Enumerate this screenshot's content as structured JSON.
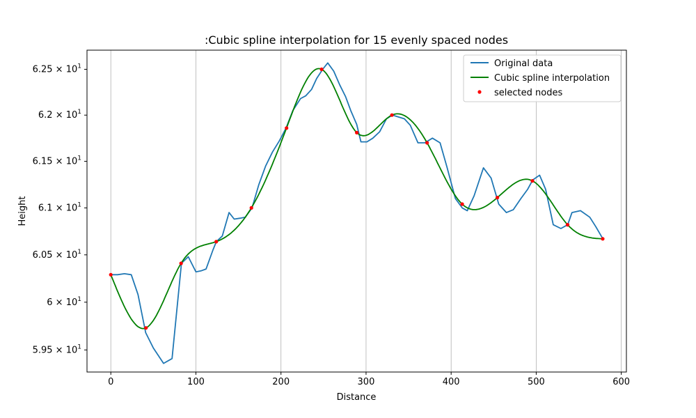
{
  "chart_data": {
    "type": "line",
    "title": ":Cubic spline interpolation for 15 evenly spaced nodes",
    "xlabel": "Distance",
    "ylabel": "Height",
    "xlim": [
      -28,
      606
    ],
    "ylim": [
      59.27,
      62.71
    ],
    "xticks": [
      0,
      100,
      200,
      300,
      400,
      500,
      600
    ],
    "xtick_labels": [
      "0",
      "100",
      "200",
      "300",
      "400",
      "500",
      "600"
    ],
    "yticks": [
      59.5,
      60.0,
      60.5,
      61.0,
      61.5,
      62.0,
      62.5
    ],
    "ytick_labels": [
      {
        "base": "5.95 × 10",
        "exp": "1"
      },
      {
        "base": "6 × 10",
        "exp": "1"
      },
      {
        "base": "6.05 × 10",
        "exp": "1"
      },
      {
        "base": "6.1 × 10",
        "exp": "1"
      },
      {
        "base": "6.15 × 10",
        "exp": "1"
      },
      {
        "base": "6.2 × 10",
        "exp": "1"
      },
      {
        "base": "6.25 × 10",
        "exp": "1"
      }
    ],
    "yscale": "log",
    "grid": "x-vertical",
    "legend_position": "top-right",
    "series": [
      {
        "name": "Original data",
        "kind": "line",
        "color": "#1f77b4",
        "x": [
          0,
          8,
          16,
          24,
          32,
          41,
          50,
          62,
          72,
          83,
          91,
          100,
          106,
          112,
          120,
          124,
          131,
          139,
          145,
          152,
          158,
          166,
          174,
          182,
          190,
          198,
          206,
          214,
          223,
          229,
          236,
          242,
          249,
          255,
          262,
          269,
          276,
          282,
          289,
          294,
          301,
          308,
          316,
          324,
          331,
          338,
          345,
          352,
          361,
          369,
          378,
          387,
          395,
          405,
          413,
          419,
          427,
          438,
          447,
          456,
          465,
          473,
          482,
          490,
          496,
          504,
          511,
          520,
          529,
          537,
          542,
          552,
          563,
          570,
          579
        ],
        "y": [
          60.29,
          60.29,
          60.3,
          60.29,
          60.08,
          59.68,
          59.52,
          59.36,
          59.41,
          60.41,
          60.48,
          60.32,
          60.33,
          60.35,
          60.55,
          60.64,
          60.7,
          60.95,
          60.88,
          60.89,
          60.9,
          61.0,
          61.25,
          61.45,
          61.6,
          61.72,
          61.86,
          62.05,
          62.18,
          62.21,
          62.28,
          62.4,
          62.5,
          62.57,
          62.48,
          62.33,
          62.2,
          62.05,
          61.9,
          61.71,
          61.71,
          61.75,
          61.82,
          61.96,
          62.0,
          61.98,
          61.96,
          61.89,
          61.7,
          61.7,
          61.75,
          61.7,
          61.44,
          61.1,
          61.0,
          60.97,
          61.13,
          61.43,
          61.32,
          61.04,
          60.95,
          60.98,
          61.1,
          61.2,
          61.3,
          61.35,
          61.2,
          60.82,
          60.78,
          60.82,
          60.95,
          60.97,
          60.9,
          60.8,
          60.66
        ]
      },
      {
        "name": "Cubic spline interpolation",
        "kind": "spline",
        "color": "#008000"
      },
      {
        "name": "selected nodes",
        "kind": "scatter",
        "color": "#ff0000",
        "x": [
          0,
          41.3,
          82.6,
          123.9,
          165.2,
          206.5,
          247.8,
          289.1,
          330.4,
          371.7,
          413.0,
          454.3,
          495.6,
          536.9,
          578.2
        ],
        "y": [
          60.29,
          59.73,
          60.41,
          60.64,
          61.0,
          61.86,
          62.5,
          61.81,
          62.0,
          61.7,
          61.04,
          61.11,
          61.29,
          60.82,
          60.67
        ]
      }
    ]
  }
}
